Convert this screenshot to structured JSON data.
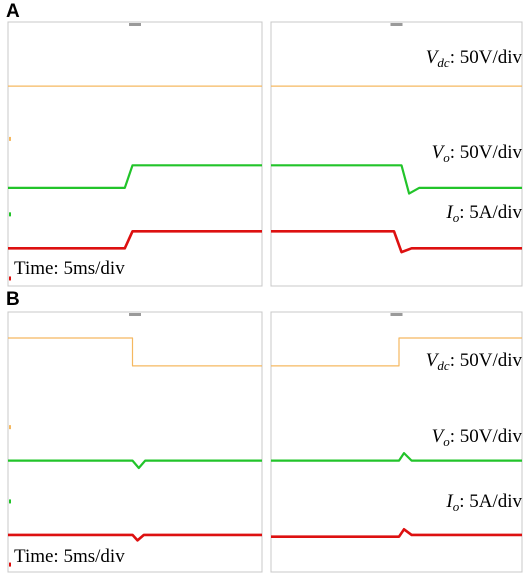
{
  "panel_labels": [
    "A",
    "B"
  ],
  "colors": {
    "vdc": "#f5b860",
    "vo": "#22c42a",
    "io": "#dd1010",
    "frame": "#c8c8c8"
  },
  "chart_data": [
    {
      "type": "line",
      "panel": "A",
      "time_label": "Time: 5ms/div",
      "annotations": [
        {
          "series": "vdc",
          "base": "V",
          "sub": "dc",
          "text": ": 50V/div"
        },
        {
          "series": "vo",
          "base": "V",
          "sub": "o",
          "text": ": 50V/div"
        },
        {
          "series": "io",
          "base": "I",
          "sub": "o",
          "text": ": 5A/div"
        }
      ],
      "subplots": [
        {
          "name": "left",
          "series": {
            "vdc": [
              [
                0,
                5.3
              ],
              [
                10,
                5.3
              ]
            ],
            "vo": [
              [
                0,
                2.6
              ],
              [
                4.6,
                2.6
              ],
              [
                4.9,
                3.2
              ],
              [
                10,
                3.2
              ]
            ],
            "io": [
              [
                0,
                1.0
              ],
              [
                4.6,
                1.0
              ],
              [
                4.9,
                1.45
              ],
              [
                10,
                1.45
              ]
            ]
          }
        },
        {
          "name": "right",
          "series": {
            "vdc": [
              [
                0,
                5.3
              ],
              [
                10,
                5.3
              ]
            ],
            "vo": [
              [
                0,
                3.2
              ],
              [
                5.2,
                3.2
              ],
              [
                5.5,
                2.45
              ],
              [
                5.9,
                2.6
              ],
              [
                10,
                2.6
              ]
            ],
            "io": [
              [
                0,
                1.45
              ],
              [
                4.9,
                1.45
              ],
              [
                5.2,
                0.9
              ],
              [
                5.6,
                1.0
              ],
              [
                10,
                1.0
              ]
            ]
          }
        }
      ]
    },
    {
      "type": "line",
      "panel": "B",
      "time_label": "Time: 5ms/div",
      "annotations": [
        {
          "series": "vdc",
          "base": "V",
          "sub": "dc",
          "text": ": 50V/div"
        },
        {
          "series": "vo",
          "base": "V",
          "sub": "o",
          "text": ": 50V/div"
        },
        {
          "series": "io",
          "base": "I",
          "sub": "o",
          "text": ": 5A/div"
        }
      ],
      "subplots": [
        {
          "name": "left",
          "series": {
            "vdc": [
              [
                0,
                6.3
              ],
              [
                4.9,
                6.3
              ],
              [
                4.9,
                5.55
              ],
              [
                10,
                5.55
              ]
            ],
            "vo": [
              [
                0,
                3.0
              ],
              [
                4.9,
                3.0
              ],
              [
                5.15,
                2.8
              ],
              [
                5.4,
                3.0
              ],
              [
                10,
                3.0
              ]
            ],
            "io": [
              [
                0,
                1.0
              ],
              [
                4.9,
                1.0
              ],
              [
                5.1,
                0.85
              ],
              [
                5.35,
                1.0
              ],
              [
                10,
                1.0
              ]
            ]
          }
        },
        {
          "name": "right",
          "series": {
            "vdc": [
              [
                0,
                5.55
              ],
              [
                5.1,
                5.55
              ],
              [
                5.1,
                6.3
              ],
              [
                10,
                6.3
              ]
            ],
            "vo": [
              [
                0,
                3.0
              ],
              [
                5.1,
                3.0
              ],
              [
                5.3,
                3.2
              ],
              [
                5.6,
                3.0
              ],
              [
                10,
                3.0
              ]
            ],
            "io": [
              [
                0,
                0.95
              ],
              [
                5.1,
                0.95
              ],
              [
                5.3,
                1.15
              ],
              [
                5.6,
                1.0
              ],
              [
                10,
                1.0
              ]
            ]
          }
        }
      ]
    }
  ]
}
